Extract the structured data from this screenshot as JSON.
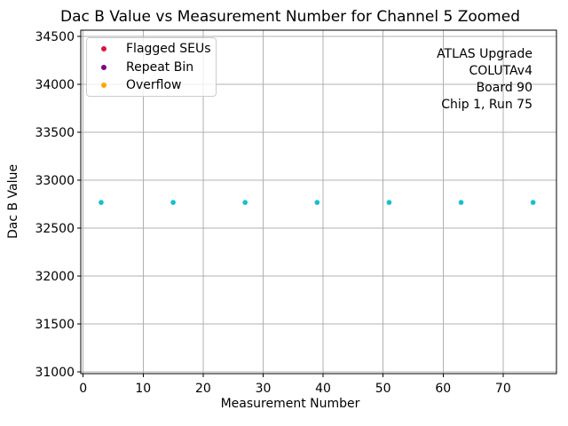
{
  "chart_data": {
    "type": "scatter",
    "title": "Dac B Value vs Measurement Number for Channel 5 Zoomed",
    "xlabel": "Measurement Number",
    "ylabel": "Dac B Value",
    "xlim": [
      -0.4,
      78.9
    ],
    "ylim": [
      30980,
      34565
    ],
    "xticks": [
      0,
      10,
      20,
      30,
      40,
      50,
      60,
      70
    ],
    "yticks": [
      31000,
      31500,
      32000,
      32500,
      33000,
      33500,
      34000,
      34500
    ],
    "grid": true,
    "grid_color": "#b0b0b0",
    "spine_color": "#000000",
    "series": [
      {
        "name": "measurements",
        "marker": "dot",
        "color": "#17becf",
        "x": [
          3,
          15,
          27,
          39,
          51,
          63,
          75
        ],
        "y": [
          32767,
          32767,
          32767,
          32767,
          32767,
          32767,
          32767
        ]
      }
    ],
    "legend": {
      "position": "upper-left",
      "entries": [
        {
          "label": "Flagged SEUs",
          "color": "#dc143c"
        },
        {
          "label": "Repeat Bin",
          "color": "#800080"
        },
        {
          "label": "Overflow",
          "color": "#ffa500"
        }
      ]
    },
    "annotation": {
      "align": "right",
      "lines": [
        "ATLAS Upgrade",
        "COLUTAv4",
        "Board 90",
        "Chip 1, Run 75"
      ]
    }
  }
}
